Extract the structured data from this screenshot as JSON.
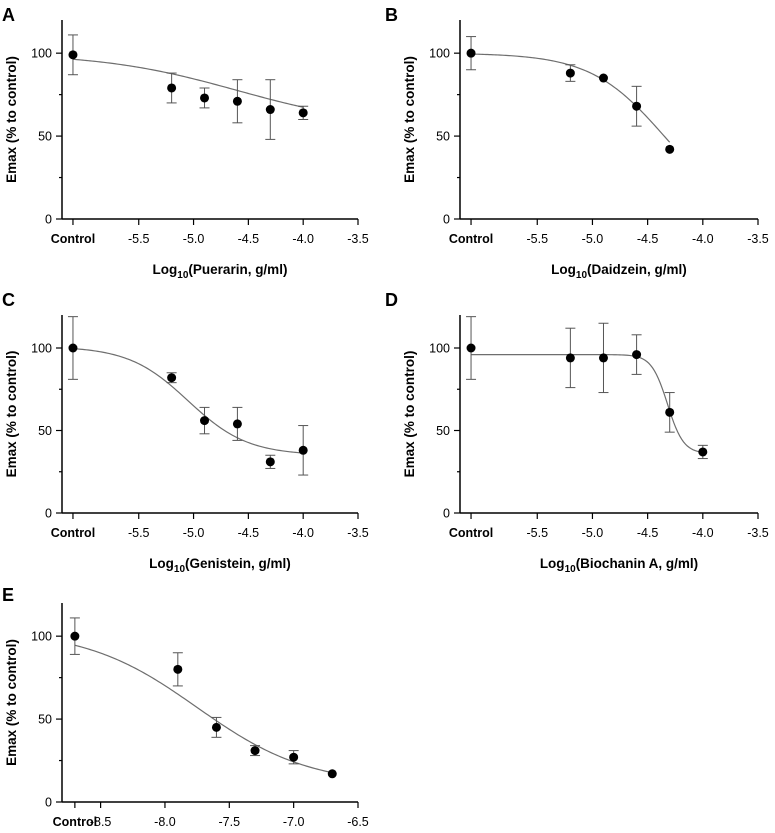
{
  "figure_panels": [
    "A",
    "B",
    "C",
    "D",
    "E"
  ],
  "chart_data": [
    {
      "panel": "A",
      "type": "scatter",
      "title": "",
      "xlabel_prefix": "Log",
      "xlabel_sub": "10",
      "xlabel_suffix": "(Puerarin, g/ml)",
      "ylabel": "Emax (% to control)",
      "xlim": [
        -6.2,
        -3.5
      ],
      "ylim": [
        0,
        120
      ],
      "xticks": [
        -5.5,
        -5.0,
        -4.5,
        -4.0,
        -3.5
      ],
      "xtick_labels": [
        "-5.5",
        "-5.0",
        "-4.5",
        "-4.0",
        "-3.5"
      ],
      "control_x": -6.1,
      "control_label": "Control",
      "yticks": [
        0,
        50,
        100
      ],
      "ytick_labels": [
        "0",
        "50",
        "100"
      ],
      "points": [
        {
          "x": -6.1,
          "y": 99,
          "err": 12
        },
        {
          "x": -5.2,
          "y": 79,
          "err": 9
        },
        {
          "x": -4.9,
          "y": 73,
          "err": 6
        },
        {
          "x": -4.6,
          "y": 71,
          "err": 13
        },
        {
          "x": -4.3,
          "y": 66,
          "err": 18
        },
        {
          "x": -4.0,
          "y": 64,
          "err": 4
        }
      ],
      "fit": {
        "top": 100,
        "bottom": 55,
        "logEC50": -4.6,
        "hill": 0.7,
        "x_start": -6.1,
        "x_end": -4.0
      }
    },
    {
      "panel": "B",
      "type": "scatter",
      "title": "",
      "xlabel_prefix": "Log",
      "xlabel_sub": "10",
      "xlabel_suffix": "(Daidzein, g/ml)",
      "ylabel": "Emax (% to control)",
      "xlim": [
        -6.2,
        -3.5
      ],
      "ylim": [
        0,
        120
      ],
      "xticks": [
        -5.5,
        -5.0,
        -4.5,
        -4.0,
        -3.5
      ],
      "xtick_labels": [
        "-5.5",
        "-5.0",
        "-4.5",
        "-4.0",
        "-3.5"
      ],
      "control_x": -6.1,
      "control_label": "Control",
      "yticks": [
        0,
        50,
        100
      ],
      "ytick_labels": [
        "0",
        "50",
        "100"
      ],
      "points": [
        {
          "x": -6.1,
          "y": 100,
          "err": 10
        },
        {
          "x": -5.2,
          "y": 88,
          "err": 5
        },
        {
          "x": -4.9,
          "y": 85,
          "err": 0
        },
        {
          "x": -4.6,
          "y": 68,
          "err": 12
        },
        {
          "x": -4.3,
          "y": 42,
          "err": 0
        }
      ],
      "fit": {
        "top": 100,
        "bottom": 0,
        "logEC50": -4.35,
        "hill": 1.3,
        "x_start": -6.1,
        "x_end": -4.3
      }
    },
    {
      "panel": "C",
      "type": "scatter",
      "title": "",
      "xlabel_prefix": "Log",
      "xlabel_sub": "10",
      "xlabel_suffix": "(Genistein, g/ml)",
      "ylabel": "Emax (% to control)",
      "xlim": [
        -6.2,
        -3.5
      ],
      "ylim": [
        0,
        120
      ],
      "xticks": [
        -5.5,
        -5.0,
        -4.5,
        -4.0,
        -3.5
      ],
      "xtick_labels": [
        "-5.5",
        "-5.0",
        "-4.5",
        "-4.0",
        "-3.5"
      ],
      "control_x": -6.1,
      "control_label": "Control",
      "yticks": [
        0,
        50,
        100
      ],
      "ytick_labels": [
        "0",
        "50",
        "100"
      ],
      "points": [
        {
          "x": -6.1,
          "y": 100,
          "err": 19
        },
        {
          "x": -5.2,
          "y": 82,
          "err": 3
        },
        {
          "x": -4.9,
          "y": 56,
          "err": 8
        },
        {
          "x": -4.6,
          "y": 54,
          "err": 10
        },
        {
          "x": -4.3,
          "y": 31,
          "err": 4
        },
        {
          "x": -4.0,
          "y": 38,
          "err": 15
        }
      ],
      "fit": {
        "top": 101,
        "bottom": 35,
        "logEC50": -5.05,
        "hill": 1.6,
        "x_start": -6.1,
        "x_end": -4.0
      }
    },
    {
      "panel": "D",
      "type": "scatter",
      "title": "",
      "xlabel_prefix": "Log",
      "xlabel_sub": "10",
      "xlabel_suffix": "(Biochanin A, g/ml)",
      "ylabel": "Emax (% to control)",
      "xlim": [
        -6.2,
        -3.5
      ],
      "ylim": [
        0,
        120
      ],
      "xticks": [
        -5.5,
        -5.0,
        -4.5,
        -4.0,
        -3.5
      ],
      "xtick_labels": [
        "-5.5",
        "-5.0",
        "-4.5",
        "-4.0",
        "-3.5"
      ],
      "control_x": -6.1,
      "control_label": "Control",
      "yticks": [
        0,
        50,
        100
      ],
      "ytick_labels": [
        "0",
        "50",
        "100"
      ],
      "points": [
        {
          "x": -6.1,
          "y": 100,
          "err": 19
        },
        {
          "x": -5.2,
          "y": 94,
          "err": 18
        },
        {
          "x": -4.9,
          "y": 94,
          "err": 21
        },
        {
          "x": -4.6,
          "y": 96,
          "err": 12
        },
        {
          "x": -4.3,
          "y": 61,
          "err": 12
        },
        {
          "x": -4.0,
          "y": 37,
          "err": 4
        }
      ],
      "fit": {
        "top": 96,
        "bottom": 36,
        "logEC50": -4.32,
        "hill": 6,
        "x_start": -6.1,
        "x_end": -4.0
      }
    },
    {
      "panel": "E",
      "type": "scatter",
      "title": "",
      "xlabel_prefix": "",
      "xlabel_sub": "",
      "xlabel_suffix": "",
      "ylabel": "Emax (% to control)",
      "xlim": [
        -8.8,
        -6.5
      ],
      "ylim": [
        0,
        120
      ],
      "xticks": [
        -8.5,
        -8.0,
        -7.5,
        -7.0,
        -6.5
      ],
      "xtick_labels": [
        "-8.5",
        "-8.0",
        "-7.5",
        "-7.0",
        "-6.5"
      ],
      "control_x": -8.7,
      "control_label": "Control",
      "yticks": [
        0,
        50,
        100
      ],
      "ytick_labels": [
        "0",
        "50",
        "100"
      ],
      "points": [
        {
          "x": -8.7,
          "y": 100,
          "err": 11
        },
        {
          "x": -7.9,
          "y": 80,
          "err": 10
        },
        {
          "x": -7.6,
          "y": 45,
          "err": 6
        },
        {
          "x": -7.3,
          "y": 31,
          "err": 3
        },
        {
          "x": -7.0,
          "y": 27,
          "err": 4
        },
        {
          "x": -6.7,
          "y": 17,
          "err": 0
        }
      ],
      "fit": {
        "top": 104,
        "bottom": 10,
        "logEC50": -7.75,
        "hill": 1.0,
        "x_start": -8.7,
        "x_end": -6.7
      }
    }
  ]
}
